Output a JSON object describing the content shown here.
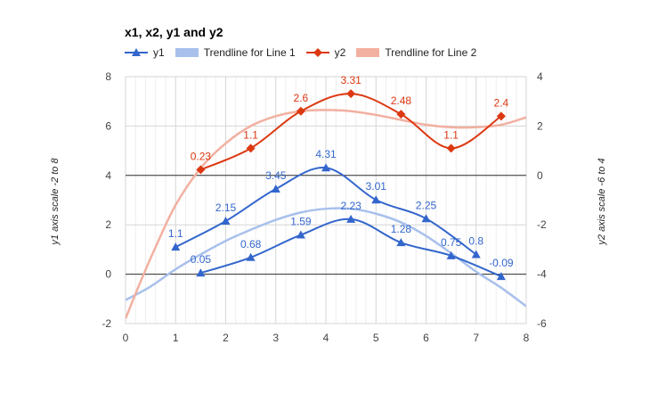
{
  "chart_data": {
    "type": "line",
    "title": "x1, x2, y1 and y2",
    "y_left_label": "y1 axis scale -2 to 8",
    "y_right_label": "y2 axis scale -6 to 4",
    "xlim": [
      0,
      8
    ],
    "x_ticks": [
      "0",
      "1",
      "2",
      "3",
      "4",
      "5",
      "6",
      "7",
      "8"
    ],
    "ylim_left": [
      -2,
      8
    ],
    "y_left_ticks": [
      "-2",
      "0",
      "2",
      "4",
      "6",
      "8"
    ],
    "ylim_right": [
      -6,
      4
    ],
    "y_right_ticks": [
      "-6",
      "-4",
      "-2",
      "0",
      "2",
      "4"
    ],
    "grid": true,
    "legend_position": "top",
    "legend": [
      {
        "label": "y1",
        "color": "#3366cc",
        "kind": "line-triangle"
      },
      {
        "label": "Trendline for Line 1",
        "color": "#a8c0ec",
        "kind": "band"
      },
      {
        "label": "y2",
        "color": "#dc3912",
        "kind": "line-diamond"
      },
      {
        "label": "Trendline for Line 2",
        "color": "#f2b0a0",
        "kind": "band"
      }
    ],
    "series": [
      {
        "name": "y1",
        "axis": "left",
        "color": "#3366cc",
        "marker": "triangle",
        "points": [
          {
            "x": 1,
            "y": 1.1,
            "label": "1.1"
          },
          {
            "x": 2,
            "y": 2.15,
            "label": "2.15"
          },
          {
            "x": 3,
            "y": 3.45,
            "label": "3.45"
          },
          {
            "x": 4,
            "y": 4.31,
            "label": "4.31"
          },
          {
            "x": 5,
            "y": 3.01,
            "label": "3.01"
          },
          {
            "x": 6,
            "y": 2.25,
            "label": "2.25"
          },
          {
            "x": 7,
            "y": 0.8,
            "label": "0.8"
          }
        ]
      },
      {
        "name": "y1",
        "axis": "left",
        "color": "#3366cc",
        "marker": "triangle",
        "points": [
          {
            "x": 1.5,
            "y": 0.05,
            "label": "0.05"
          },
          {
            "x": 2.5,
            "y": 0.68,
            "label": "0.68"
          },
          {
            "x": 3.5,
            "y": 1.59,
            "label": "1.59"
          },
          {
            "x": 4.5,
            "y": 2.23,
            "label": "2.23"
          },
          {
            "x": 5.5,
            "y": 1.28,
            "label": "1.28"
          },
          {
            "x": 6.5,
            "y": 0.75,
            "label": "0.75"
          },
          {
            "x": 7.5,
            "y": -0.09,
            "label": "-0.09"
          }
        ]
      },
      {
        "name": "y2",
        "axis": "right",
        "color": "#dc3912",
        "marker": "diamond",
        "points": [
          {
            "x": 1.5,
            "y": 0.23,
            "label": "0.23"
          },
          {
            "x": 2.5,
            "y": 1.1,
            "label": "1.1"
          },
          {
            "x": 3.5,
            "y": 2.6,
            "label": "2.6"
          },
          {
            "x": 4.5,
            "y": 3.31,
            "label": "3.31"
          },
          {
            "x": 5.5,
            "y": 2.48,
            "label": "2.48"
          },
          {
            "x": 6.5,
            "y": 1.1,
            "label": "1.1"
          },
          {
            "x": 7.5,
            "y": 2.4,
            "label": "2.4"
          }
        ]
      }
    ],
    "trendlines": [
      {
        "name": "Trendline for Line 1",
        "axis": "left",
        "color": "#a8c0ec",
        "points": [
          [
            0,
            -1.05
          ],
          [
            0.5,
            -0.5
          ],
          [
            1,
            0.2
          ],
          [
            1.5,
            0.8
          ],
          [
            2,
            1.35
          ],
          [
            2.5,
            1.8
          ],
          [
            3,
            2.2
          ],
          [
            3.5,
            2.5
          ],
          [
            4,
            2.65
          ],
          [
            4.5,
            2.65
          ],
          [
            5,
            2.45
          ],
          [
            5.5,
            2.1
          ],
          [
            6,
            1.55
          ],
          [
            6.5,
            0.85
          ],
          [
            7,
            0.1
          ],
          [
            7.5,
            -0.55
          ],
          [
            8,
            -1.3
          ]
        ]
      },
      {
        "name": "Trendline for Line 2",
        "axis": "right",
        "color": "#f2b0a0",
        "points": [
          [
            0,
            -5.8
          ],
          [
            0.3,
            -4.3
          ],
          [
            0.6,
            -2.9
          ],
          [
            1,
            -1.2
          ],
          [
            1.5,
            0.3
          ],
          [
            2,
            1.3
          ],
          [
            2.5,
            2.0
          ],
          [
            3,
            2.4
          ],
          [
            3.5,
            2.6
          ],
          [
            4,
            2.65
          ],
          [
            4.5,
            2.6
          ],
          [
            5,
            2.45
          ],
          [
            5.5,
            2.25
          ],
          [
            6,
            2.05
          ],
          [
            6.5,
            1.95
          ],
          [
            7,
            1.95
          ],
          [
            7.5,
            2.05
          ],
          [
            8,
            2.35
          ]
        ]
      }
    ]
  }
}
